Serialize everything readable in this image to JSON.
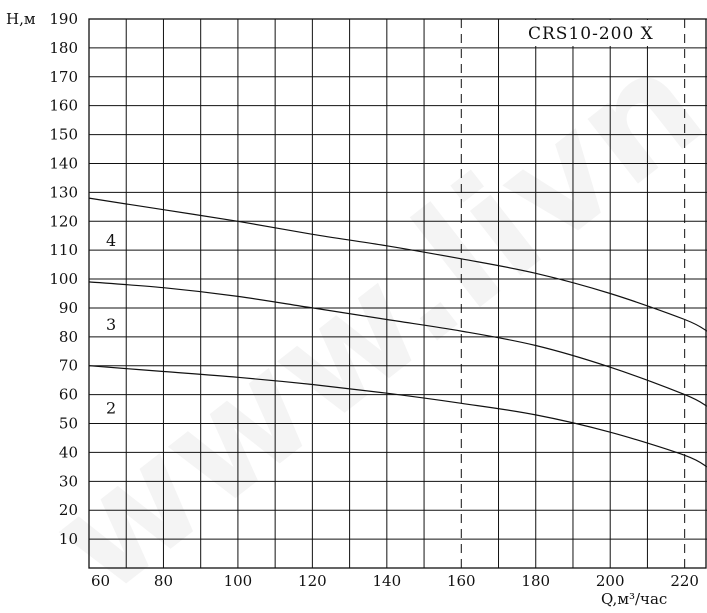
{
  "chart_data": {
    "type": "line",
    "title": "CRS10-200 X",
    "xlabel": "Q,м³/час",
    "ylabel": "H,м",
    "xlim": [
      60,
      226
    ],
    "ylim": [
      0,
      190
    ],
    "x_ticks": [
      60,
      80,
      100,
      120,
      140,
      160,
      180,
      200,
      220
    ],
    "y_ticks": [
      10,
      20,
      30,
      40,
      50,
      60,
      70,
      80,
      90,
      100,
      110,
      120,
      130,
      140,
      150,
      160,
      170,
      180,
      190
    ],
    "grid": true,
    "dashed_verticals": [
      160,
      220
    ],
    "watermark": "www.livn",
    "series": [
      {
        "name": "2",
        "x": [
          60,
          80,
          100,
          120,
          140,
          160,
          180,
          200,
          220,
          226
        ],
        "y": [
          70,
          68,
          66,
          63.5,
          60.5,
          57,
          53,
          47,
          39,
          35
        ]
      },
      {
        "name": "3",
        "x": [
          60,
          80,
          100,
          120,
          140,
          160,
          180,
          200,
          220,
          226
        ],
        "y": [
          99,
          97,
          94,
          90,
          86,
          82,
          77,
          69.5,
          60,
          56
        ]
      },
      {
        "name": "4",
        "x": [
          60,
          80,
          100,
          120,
          140,
          160,
          180,
          200,
          220,
          226
        ],
        "y": [
          128,
          124,
          120,
          115.5,
          111.5,
          107,
          102,
          95,
          86,
          82
        ]
      }
    ]
  }
}
